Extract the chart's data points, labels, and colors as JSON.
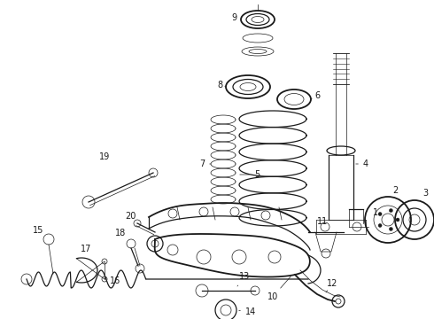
{
  "bg_color": "#ffffff",
  "line_color": "#1a1a1a",
  "figsize": [
    4.9,
    3.6
  ],
  "dpi": 100,
  "xlim": [
    0,
    490
  ],
  "ylim": [
    0,
    360
  ]
}
